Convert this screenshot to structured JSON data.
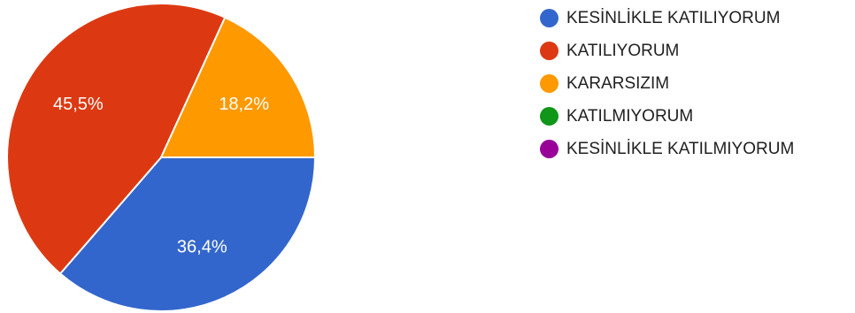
{
  "chart_data": {
    "type": "pie",
    "title": "",
    "legend_position": "right",
    "categories": [
      "KESİNLİKLE KATILIYORUM",
      "KATILIYORUM",
      "KARARSIZIM",
      "KATILMIYORUM",
      "KESİNLİKLE KATILMIYORUM"
    ],
    "values": [
      36.4,
      45.5,
      18.2,
      0,
      0
    ],
    "labels": [
      "36,4%",
      "45,5%",
      "18,2%",
      "",
      ""
    ],
    "colors": [
      "#3366cc",
      "#dc3912",
      "#ff9900",
      "#109618",
      "#990099"
    ]
  }
}
